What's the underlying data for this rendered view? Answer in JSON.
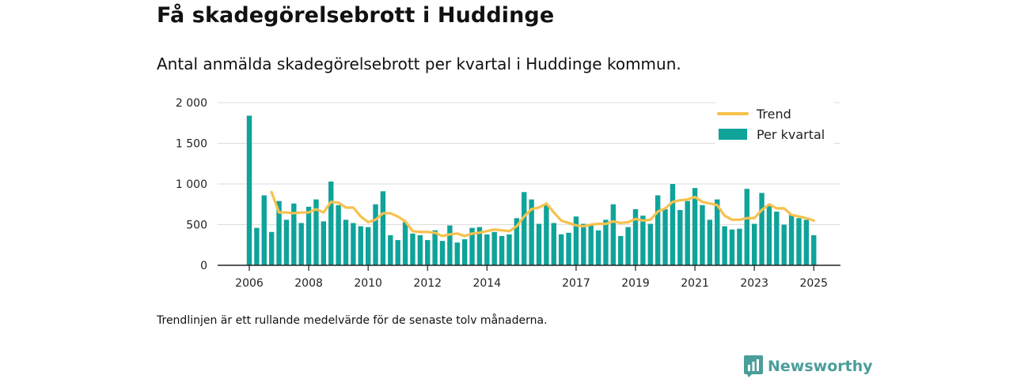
{
  "header": {
    "title": "Få skadegörelsebrott i Huddinge",
    "subtitle": "Antal anmälda skadegörelsebrott per kvartal i Huddinge kommun."
  },
  "footer": {
    "note": "Trendlinjen är ett rullande medelvärde för de senaste tolv månaderna.",
    "brand": "Newsworthy"
  },
  "colors": {
    "bar": "#0fa39a",
    "trend": "#f7c14d",
    "grid": "#dddddd",
    "axis": "#222222",
    "brand": "#4a9e9a"
  },
  "chart_data": {
    "type": "bar",
    "title": "",
    "xlabel": "",
    "ylabel": "",
    "ylim": [
      0,
      2000
    ],
    "yticks": [
      0,
      500,
      1000,
      1500,
      2000
    ],
    "ytick_labels": [
      "0",
      "500",
      "1 000",
      "1 500",
      "2 000"
    ],
    "xtick_labels": [
      "2006",
      "2008",
      "2010",
      "2012",
      "2014",
      "2017",
      "2019",
      "2021",
      "2023",
      "2025"
    ],
    "xtick_positions": [
      0,
      8,
      16,
      24,
      32,
      44,
      52,
      60,
      68,
      76
    ],
    "grid": true,
    "legend": {
      "placement": "top-right",
      "entries": [
        "Trend",
        "Per kvartal"
      ]
    },
    "series": [
      {
        "name": "Per kvartal",
        "kind": "bar",
        "values": [
          1840,
          460,
          860,
          410,
          790,
          560,
          760,
          520,
          720,
          810,
          540,
          1030,
          740,
          560,
          520,
          480,
          470,
          750,
          910,
          370,
          310,
          530,
          390,
          370,
          310,
          430,
          300,
          490,
          280,
          320,
          460,
          470,
          380,
          410,
          360,
          380,
          580,
          900,
          810,
          510,
          740,
          520,
          380,
          400,
          600,
          510,
          500,
          430,
          560,
          750,
          360,
          470,
          690,
          610,
          510,
          860,
          690,
          1000,
          680,
          790,
          950,
          740,
          560,
          810,
          480,
          440,
          450,
          940,
          510,
          890,
          740,
          660,
          500,
          620,
          580,
          560,
          370
        ]
      },
      {
        "name": "Trend",
        "kind": "line",
        "values": [
          null,
          null,
          null,
          900,
          650,
          650,
          640,
          650,
          650,
          690,
          650,
          780,
          770,
          710,
          710,
          600,
          530,
          560,
          640,
          640,
          600,
          540,
          420,
          410,
          410,
          400,
          360,
          380,
          390,
          360,
          390,
          400,
          420,
          440,
          430,
          420,
          480,
          600,
          690,
          710,
          760,
          650,
          550,
          520,
          490,
          480,
          500,
          510,
          510,
          540,
          520,
          530,
          570,
          550,
          560,
          660,
          700,
          780,
          800,
          810,
          840,
          780,
          760,
          740,
          610,
          560,
          560,
          580,
          580,
          680,
          750,
          700,
          700,
          620,
          600,
          580,
          550
        ]
      }
    ]
  }
}
